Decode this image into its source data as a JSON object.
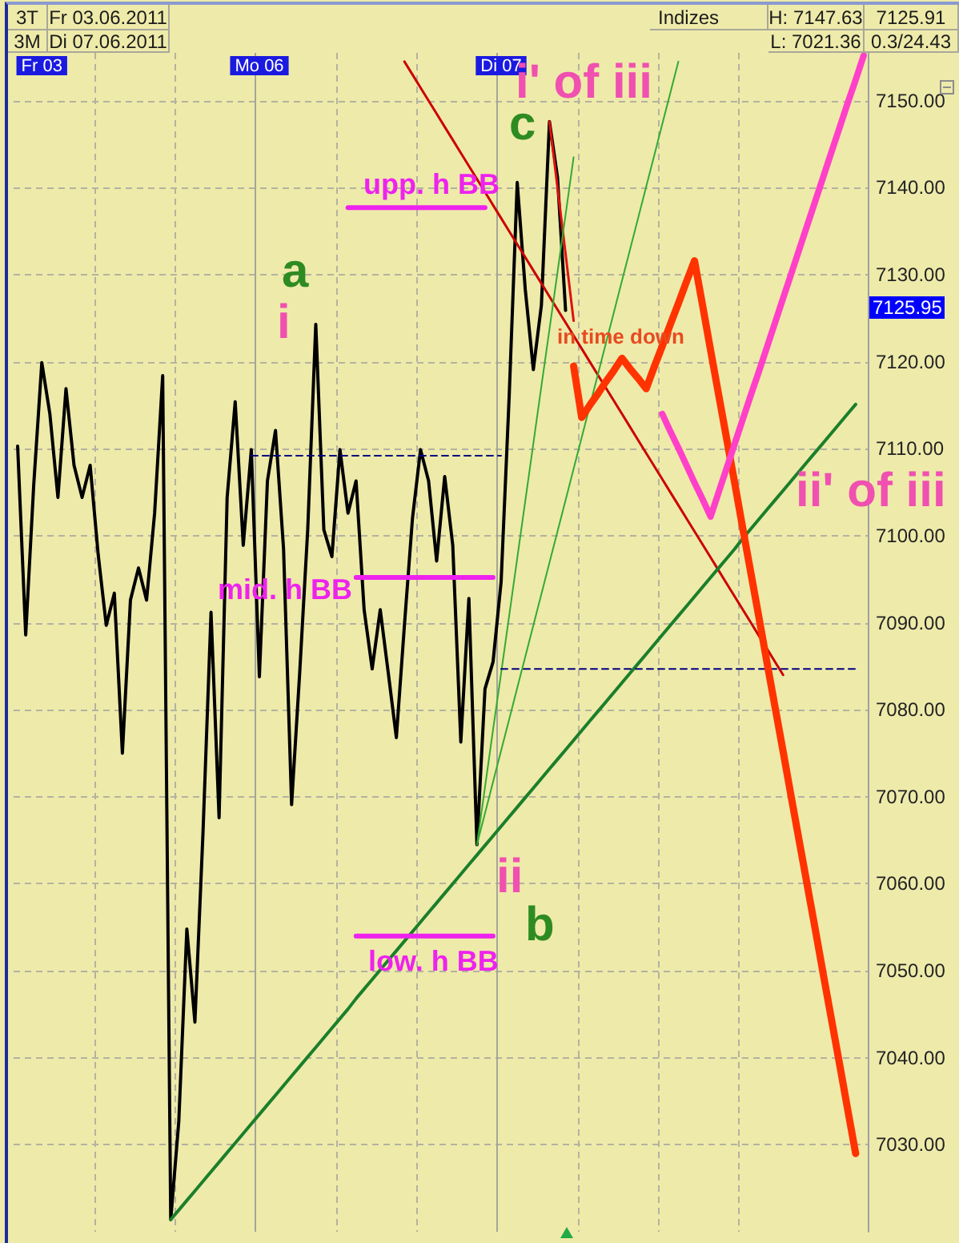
{
  "chart_data": {
    "type": "line",
    "categories": [
      null,
      null,
      null,
      "Fr 03",
      null,
      null,
      null,
      null,
      null,
      null,
      null,
      null,
      null,
      null,
      null,
      null,
      null,
      null,
      null,
      null,
      null,
      null,
      null,
      null,
      null,
      null,
      null,
      null,
      null,
      null,
      "Mo 06",
      null,
      null,
      null,
      null,
      null,
      null,
      null,
      null,
      null,
      null,
      null,
      null,
      null,
      null,
      null,
      null,
      null,
      null,
      null,
      null,
      null,
      null,
      null,
      null,
      null,
      null,
      null,
      null,
      null,
      "Di 07",
      null,
      null,
      null,
      null,
      null,
      null,
      null,
      null,
      null,
      null,
      null,
      null,
      null,
      null,
      null,
      null,
      null,
      null,
      null,
      null,
      null,
      null,
      null,
      null,
      null,
      null,
      null,
      null,
      null,
      null,
      null,
      null,
      null,
      null,
      null,
      null,
      null,
      null,
      null,
      null,
      null,
      null,
      null,
      null,
      null
    ],
    "ylim": [
      7020,
      7155.5
    ],
    "yticks": [
      {
        "value": 7030,
        "label": "7030.00"
      },
      {
        "value": 7040,
        "label": "7040.00"
      },
      {
        "value": 7050,
        "label": "7050.00"
      },
      {
        "value": 7060,
        "label": "7060.00"
      },
      {
        "value": 7070,
        "label": "7070.00"
      },
      {
        "value": 7080,
        "label": "7080.00"
      },
      {
        "value": 7090,
        "label": "7090.00"
      },
      {
        "value": 7100,
        "label": "7100.00"
      },
      {
        "value": 7110,
        "label": "7110.00"
      },
      {
        "value": 7120,
        "label": "7120.00"
      },
      {
        "value": 7130,
        "label": "7130.00"
      },
      {
        "value": 7140,
        "label": "7140.00"
      },
      {
        "value": 7150,
        "label": "7150.00"
      }
    ],
    "grid": true,
    "marker": "none",
    "series": [
      {
        "color": "#000000",
        "values": [
          7110.3,
          7088.6,
          7105.9,
          7119.9,
          7114.0,
          7104.4,
          7116.9,
          7108.1,
          7104.4,
          7108.1,
          7097.8,
          7089.7,
          7093.4,
          7075.0,
          7092.6,
          7096.3,
          7092.6,
          7102.6,
          7118.4,
          7021.4,
          7032.7,
          7054.8,
          7044.1,
          7065.8,
          7091.2,
          7067.6,
          7104.4,
          7115.4,
          7098.9,
          7109.9,
          7083.8,
          7106.3,
          7112.1,
          7098.5,
          7069.1,
          7084.2,
          7100.7,
          7124.3,
          7100.7,
          7097.6,
          7109.9,
          7102.6,
          7106.3,
          7091.5,
          7084.7,
          7091.5,
          7084.2,
          7076.8,
          7089.7,
          7102.0,
          7109.9,
          7106.3,
          7097.1,
          7106.8,
          7098.9,
          7076.3,
          7092.8,
          7064.5,
          7082.4,
          7085.5,
          7094.7,
          7116.0,
          7140.6,
          7128.3,
          7119.1,
          7126.5,
          7147.6,
          7141.2,
          7125.9,
          null,
          null,
          null,
          null,
          null,
          null,
          null,
          null,
          null,
          null,
          null,
          null,
          null,
          null,
          null,
          null,
          null,
          null,
          null,
          null,
          null,
          null,
          null,
          null,
          null,
          null,
          null,
          null,
          null,
          null,
          null,
          null,
          null,
          null,
          null,
          null,
          null
        ]
      },
      {
        "color": "#cc0000",
        "values": [
          null,
          null,
          null,
          null,
          null,
          null,
          null,
          null,
          null,
          null,
          null,
          null,
          null,
          null,
          null,
          null,
          null,
          null,
          null,
          null,
          null,
          null,
          null,
          null,
          null,
          null,
          null,
          null,
          null,
          null,
          null,
          null,
          null,
          null,
          null,
          null,
          null,
          null,
          null,
          null,
          null,
          null,
          null,
          null,
          null,
          null,
          null,
          null,
          7154.5,
          7153.0,
          7151.5,
          7150.0,
          7148.5,
          7147.0,
          7145.5,
          7144.0,
          7142.5,
          7141.0,
          7139.5,
          7138.0,
          7136.5,
          7135.0,
          7133.5,
          7132.0,
          7130.5,
          7129.0,
          7127.5,
          7126.0,
          7124.5,
          7123.0,
          7121.5,
          7120.0,
          7118.5,
          7117.0,
          7115.5,
          7114.0,
          7112.5,
          7111.0,
          7109.5,
          7108.0,
          7106.5,
          7105.0,
          7103.5,
          7102.0,
          7100.5,
          7099.0,
          7097.5,
          7096.0,
          7094.5,
          7093.0,
          7091.5,
          7090.0,
          7088.5,
          7087.0,
          7085.5,
          7084.0,
          null,
          null,
          null,
          null,
          null,
          null,
          null,
          null,
          null,
          null
        ]
      },
      {
        "color": "#dd1111",
        "values": [
          null,
          null,
          null,
          null,
          null,
          null,
          null,
          null,
          null,
          null,
          null,
          null,
          null,
          null,
          null,
          null,
          null,
          null,
          null,
          null,
          null,
          null,
          null,
          null,
          null,
          null,
          null,
          null,
          null,
          null,
          null,
          null,
          null,
          null,
          null,
          null,
          null,
          null,
          null,
          null,
          null,
          null,
          null,
          null,
          null,
          null,
          null,
          null,
          null,
          null,
          null,
          null,
          null,
          null,
          null,
          null,
          null,
          null,
          null,
          null,
          null,
          null,
          null,
          null,
          null,
          null,
          7147.6,
          7140.0,
          7132.4,
          7124.7,
          null,
          null,
          null,
          null,
          null,
          null,
          null,
          null,
          null,
          null,
          null,
          null,
          null,
          null,
          null,
          null,
          null,
          null,
          null,
          null,
          null,
          null,
          null,
          null,
          null,
          null,
          null,
          null,
          null,
          null,
          null,
          null,
          null,
          null,
          null,
          null
        ]
      },
      {
        "color": "#1a7f2a",
        "values": [
          null,
          null,
          null,
          null,
          null,
          null,
          null,
          null,
          null,
          null,
          null,
          null,
          null,
          null,
          null,
          null,
          null,
          null,
          null,
          7021.4,
          7022.5,
          7023.6,
          7024.7,
          7025.8,
          7026.9,
          7028.0,
          7029.1,
          7030.2,
          7031.3,
          7032.4,
          7033.5,
          7034.6,
          7035.7,
          7036.8,
          7037.9,
          7039.0,
          7040.1,
          7041.2,
          7042.3,
          7043.4,
          7044.5,
          7045.6,
          7046.8,
          7047.9,
          7049.0,
          7050.1,
          7051.2,
          7052.3,
          7053.4,
          7054.5,
          7055.6,
          7056.7,
          7057.8,
          7058.9,
          7060.0,
          7061.1,
          7062.2,
          7063.3,
          7064.4,
          7065.5,
          7066.6,
          7067.7,
          7068.8,
          7069.9,
          7071.0,
          7072.1,
          7073.2,
          7074.3,
          7075.4,
          7076.5,
          7077.6,
          7078.7,
          7079.8,
          7080.9,
          7082.0,
          7083.1,
          7084.2,
          7085.3,
          7086.4,
          7087.5,
          7088.6,
          7089.7,
          7090.8,
          7091.9,
          7093.0,
          7094.1,
          7095.2,
          7096.3,
          7097.4,
          7098.5,
          7099.7,
          7100.8,
          7101.9,
          7103.0,
          7104.1,
          7105.2,
          7106.3,
          7107.4,
          7108.5,
          7109.6,
          7110.7,
          7111.8,
          7112.9,
          7114.0,
          7115.1,
          null
        ]
      },
      {
        "color": "#33aa33",
        "values": [
          null,
          null,
          null,
          null,
          null,
          null,
          null,
          null,
          null,
          null,
          null,
          null,
          null,
          null,
          null,
          null,
          null,
          null,
          null,
          null,
          null,
          null,
          null,
          null,
          null,
          null,
          null,
          null,
          null,
          null,
          null,
          null,
          null,
          null,
          null,
          null,
          null,
          null,
          null,
          null,
          null,
          null,
          null,
          null,
          null,
          null,
          null,
          null,
          null,
          null,
          null,
          null,
          null,
          null,
          null,
          null,
          null,
          7064.5,
          7071.1,
          7077.7,
          7084.2,
          7090.8,
          7097.4,
          7104.0,
          7110.6,
          7117.2,
          7123.7,
          7130.3,
          7136.9,
          7143.5,
          null,
          null,
          null,
          null,
          null,
          null,
          null,
          null,
          null,
          null,
          null,
          null,
          null,
          null,
          null,
          null,
          null,
          null,
          null,
          null,
          null,
          null,
          null,
          null,
          null,
          null,
          null,
          null,
          null,
          null,
          null,
          null,
          null,
          null,
          null,
          null
        ]
      },
      {
        "color": "#33aa33",
        "values": [
          null,
          null,
          null,
          null,
          null,
          null,
          null,
          null,
          null,
          null,
          null,
          null,
          null,
          null,
          null,
          null,
          null,
          null,
          null,
          null,
          null,
          null,
          null,
          null,
          null,
          null,
          null,
          null,
          null,
          null,
          null,
          null,
          null,
          null,
          null,
          null,
          null,
          null,
          null,
          null,
          null,
          null,
          null,
          null,
          null,
          null,
          null,
          null,
          null,
          null,
          null,
          null,
          null,
          null,
          null,
          null,
          null,
          7064.5,
          7068.1,
          7071.7,
          7075.3,
          7078.9,
          7082.5,
          7086.1,
          7089.7,
          7093.3,
          7096.9,
          7100.5,
          7104.1,
          7107.7,
          7111.3,
          7114.9,
          7118.5,
          7122.1,
          7125.7,
          7129.3,
          7132.9,
          7136.5,
          7140.1,
          7143.7,
          7147.3,
          7150.9,
          7154.5,
          null,
          null,
          null,
          null,
          null,
          null,
          null,
          null,
          null,
          null,
          null,
          null,
          null,
          null,
          null,
          null,
          null,
          null,
          null,
          null,
          null,
          null,
          null
        ]
      },
      {
        "color": "#ee22ee",
        "values": [
          null,
          null,
          null,
          null,
          null,
          null,
          null,
          null,
          null,
          null,
          null,
          null,
          null,
          null,
          null,
          null,
          null,
          null,
          null,
          null,
          null,
          null,
          null,
          null,
          null,
          null,
          null,
          null,
          null,
          null,
          null,
          null,
          null,
          null,
          null,
          null,
          null,
          null,
          null,
          null,
          null,
          7137.7,
          7137.7,
          7137.7,
          7137.7,
          7137.7,
          7137.7,
          7137.7,
          7137.7,
          7137.7,
          7137.7,
          7137.7,
          7137.7,
          7137.7,
          7137.7,
          7137.7,
          7137.7,
          7137.7,
          7137.7,
          null,
          null,
          null,
          null,
          null,
          null,
          null,
          null,
          null,
          null,
          null,
          null,
          null,
          null,
          null,
          null,
          null,
          null,
          null,
          null,
          null,
          null,
          null,
          null,
          null,
          null,
          null,
          null,
          null,
          null,
          null,
          null,
          null,
          null,
          null,
          null,
          null,
          null,
          null,
          null,
          null,
          null,
          null,
          null,
          null,
          null,
          null
        ]
      },
      {
        "color": "#ee22ee",
        "values": [
          null,
          null,
          null,
          null,
          null,
          null,
          null,
          null,
          null,
          null,
          null,
          null,
          null,
          null,
          null,
          null,
          null,
          null,
          null,
          null,
          null,
          null,
          null,
          null,
          null,
          null,
          null,
          null,
          null,
          null,
          null,
          null,
          null,
          null,
          null,
          null,
          null,
          null,
          null,
          null,
          null,
          null,
          7095.2,
          7095.2,
          7095.2,
          7095.2,
          7095.2,
          7095.2,
          7095.2,
          7095.2,
          7095.2,
          7095.2,
          7095.2,
          7095.2,
          7095.2,
          7095.2,
          7095.2,
          7095.2,
          7095.2,
          7095.2,
          null,
          null,
          null,
          null,
          null,
          null,
          null,
          null,
          null,
          null,
          null,
          null,
          null,
          null,
          null,
          null,
          null,
          null,
          null,
          null,
          null,
          null,
          null,
          null,
          null,
          null,
          null,
          null,
          null,
          null,
          null,
          null,
          null,
          null,
          null,
          null,
          null,
          null,
          null,
          null,
          null,
          null,
          null,
          null,
          null,
          null
        ]
      },
      {
        "color": "#ee22ee",
        "values": [
          null,
          null,
          null,
          null,
          null,
          null,
          null,
          null,
          null,
          null,
          null,
          null,
          null,
          null,
          null,
          null,
          null,
          null,
          null,
          null,
          null,
          null,
          null,
          null,
          null,
          null,
          null,
          null,
          null,
          null,
          null,
          null,
          null,
          null,
          null,
          null,
          null,
          null,
          null,
          null,
          null,
          null,
          7054.0,
          7054.0,
          7054.0,
          7054.0,
          7054.0,
          7054.0,
          7054.0,
          7054.0,
          7054.0,
          7054.0,
          7054.0,
          7054.0,
          7054.0,
          7054.0,
          7054.0,
          7054.0,
          7054.0,
          7054.0,
          null,
          null,
          null,
          null,
          null,
          null,
          null,
          null,
          null,
          null,
          null,
          null,
          null,
          null,
          null,
          null,
          null,
          null,
          null,
          null,
          null,
          null,
          null,
          null,
          null,
          null,
          null,
          null,
          null,
          null,
          null,
          null,
          null,
          null,
          null,
          null,
          null,
          null,
          null,
          null,
          null,
          null,
          null,
          null,
          null,
          null
        ]
      },
      {
        "color": "#000080",
        "line_style": "dashed",
        "values": [
          null,
          null,
          null,
          null,
          null,
          null,
          null,
          null,
          null,
          null,
          null,
          null,
          null,
          null,
          null,
          null,
          null,
          null,
          null,
          null,
          null,
          null,
          null,
          null,
          null,
          null,
          null,
          null,
          null,
          7109.2,
          7109.2,
          7109.2,
          7109.2,
          7109.2,
          7109.2,
          7109.2,
          7109.2,
          7109.2,
          7109.2,
          7109.2,
          7109.2,
          7109.2,
          7109.2,
          7109.2,
          7109.2,
          7109.2,
          7109.2,
          7109.2,
          7109.2,
          7109.2,
          7109.2,
          7109.2,
          7109.2,
          7109.2,
          7109.2,
          7109.2,
          7109.2,
          7109.2,
          7109.2,
          7109.2,
          7109.2,
          null,
          null,
          null,
          null,
          null,
          null,
          null,
          null,
          null,
          null,
          null,
          null,
          null,
          null,
          null,
          null,
          null,
          null,
          null,
          null,
          null,
          null,
          null,
          null,
          null,
          null,
          null,
          null,
          null,
          null,
          null,
          null,
          null,
          null,
          null,
          null,
          null,
          null,
          null,
          null,
          null,
          null,
          null,
          null,
          null
        ]
      },
      {
        "color": "#000080",
        "line_style": "dashed",
        "values": [
          null,
          null,
          null,
          null,
          null,
          null,
          null,
          null,
          null,
          null,
          null,
          null,
          null,
          null,
          null,
          null,
          null,
          null,
          null,
          null,
          null,
          null,
          null,
          null,
          null,
          null,
          null,
          null,
          null,
          null,
          null,
          null,
          null,
          null,
          null,
          null,
          null,
          null,
          null,
          null,
          null,
          null,
          null,
          null,
          null,
          null,
          null,
          null,
          null,
          null,
          null,
          null,
          null,
          null,
          null,
          null,
          null,
          null,
          null,
          null,
          7084.7,
          7084.7,
          7084.7,
          7084.7,
          7084.7,
          7084.7,
          7084.7,
          7084.7,
          7084.7,
          7084.7,
          7084.7,
          7084.7,
          7084.7,
          7084.7,
          7084.7,
          7084.7,
          7084.7,
          7084.7,
          7084.7,
          7084.7,
          7084.7,
          7084.7,
          7084.7,
          7084.7,
          7084.7,
          7084.7,
          7084.7,
          7084.7,
          7084.7,
          7084.7,
          7084.7,
          7084.7,
          7084.7,
          7084.7,
          7084.7,
          7084.7,
          7084.7,
          7084.7,
          7084.7,
          7084.7,
          7084.7,
          7084.7,
          7084.7,
          7084.7,
          7084.7,
          null
        ]
      },
      {
        "color": "#ff3300",
        "values": [
          null,
          null,
          null,
          null,
          null,
          null,
          null,
          null,
          null,
          null,
          null,
          null,
          null,
          null,
          null,
          null,
          null,
          null,
          null,
          null,
          null,
          null,
          null,
          null,
          null,
          null,
          null,
          null,
          null,
          null,
          null,
          null,
          null,
          null,
          null,
          null,
          null,
          null,
          null,
          null,
          null,
          null,
          null,
          null,
          null,
          null,
          null,
          null,
          null,
          null,
          null,
          null,
          null,
          null,
          null,
          null,
          null,
          null,
          null,
          null,
          null,
          null,
          null,
          null,
          null,
          null,
          null,
          null,
          null,
          7119.5,
          7113.6,
          7115.0,
          7116.3,
          7117.7,
          7119.0,
          7120.4,
          7119.2,
          7118.1,
          7116.9,
          7119.4,
          7121.8,
          7124.3,
          7126.7,
          7129.2,
          7131.6,
          7126.5,
          7121.3,
          7116.2,
          7111.1,
          7106.0,
          7100.8,
          7095.7,
          7090.6,
          7085.4,
          7080.3,
          7075.2,
          7070.0,
          7064.9,
          7059.8,
          7054.7,
          7049.5,
          7044.4,
          7039.3,
          7034.1,
          7029.0,
          null
        ]
      },
      {
        "color": "#ff40c8",
        "values": [
          null,
          null,
          null,
          null,
          null,
          null,
          null,
          null,
          null,
          null,
          null,
          null,
          null,
          null,
          null,
          null,
          null,
          null,
          null,
          null,
          null,
          null,
          null,
          null,
          null,
          null,
          null,
          null,
          null,
          null,
          null,
          null,
          null,
          null,
          null,
          null,
          null,
          null,
          null,
          null,
          null,
          null,
          null,
          null,
          null,
          null,
          null,
          null,
          null,
          null,
          null,
          null,
          null,
          null,
          null,
          null,
          null,
          null,
          null,
          null,
          null,
          null,
          null,
          null,
          null,
          null,
          null,
          null,
          null,
          null,
          null,
          null,
          null,
          null,
          null,
          null,
          null,
          null,
          null,
          null,
          7114.0,
          7112.0,
          7110.1,
          7108.1,
          7106.1,
          7104.2,
          7102.2,
          7105.0,
          7107.8,
          7110.6,
          7113.4,
          7116.2,
          7118.9,
          7121.7,
          7124.5,
          7127.3,
          7130.1,
          7132.9,
          7135.7,
          7138.5,
          7141.3,
          7144.1,
          7146.9,
          7149.7,
          7152.4,
          7155.2
        ]
      }
    ],
    "annotations": [
      "3T",
      "Fr 03.06.2011",
      "3M",
      "Di 07.06.2011",
      "Indizes",
      "H: 7147.63",
      "L: 7021.36",
      "7125.91",
      "0.3/24.43",
      "a",
      "i",
      "c",
      "i' of iii",
      "upp. h BB",
      "mid. h BB",
      "low. h BB",
      "ii",
      "b",
      "ii' of iii",
      "in time down",
      "7125.95"
    ]
  }
}
